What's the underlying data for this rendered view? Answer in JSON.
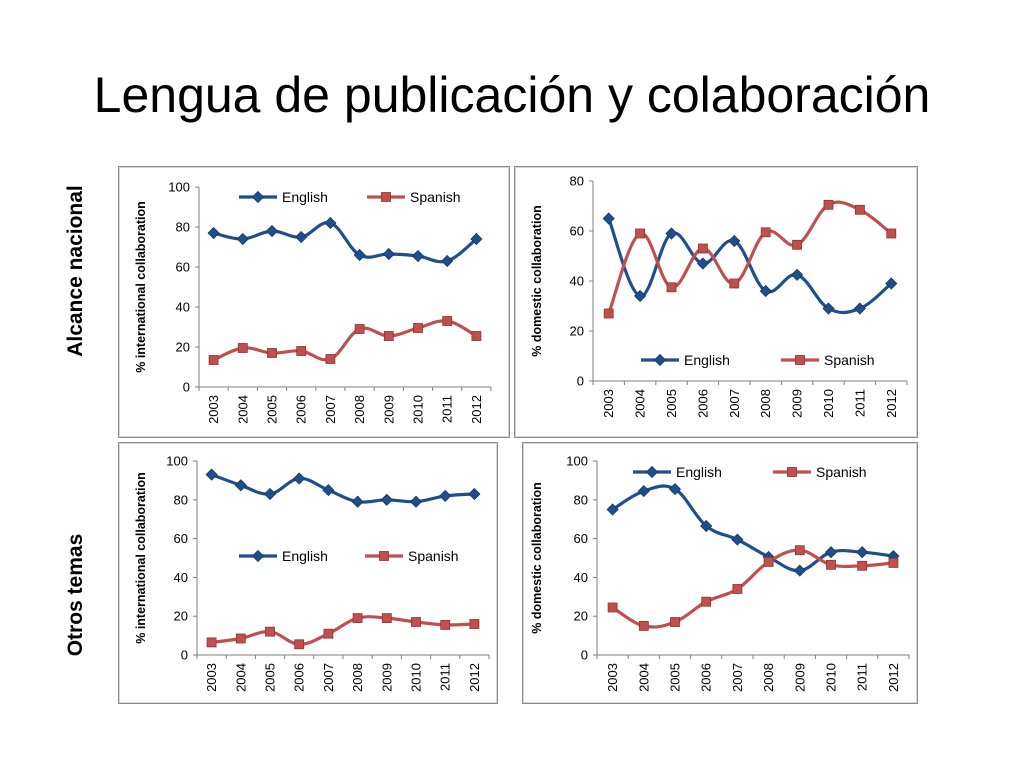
{
  "title": "Lengua de publicación y colaboración",
  "row_labels": [
    "Alcance nacional",
    "Otros  temas"
  ],
  "colors": {
    "English": "#1f4e8c",
    "Spanish": "#c0504d",
    "frame": "#8c8c8c",
    "axis": "#7f7f7f"
  },
  "chart_data": [
    {
      "type": "line",
      "categories": [
        "2003",
        "2004",
        "2005",
        "2006",
        "2007",
        "2008",
        "2009",
        "2010",
        "2011",
        "2012"
      ],
      "ylabel": "% international collaboration",
      "ylim": [
        0,
        100
      ],
      "yticks": [
        "0",
        "20",
        "40",
        "60",
        "80",
        "100"
      ],
      "legend": "top",
      "series": [
        {
          "name": "English",
          "marker": "diamond",
          "values": [
            77,
            74,
            78,
            75,
            82,
            66,
            66.5,
            65.5,
            63,
            74
          ]
        },
        {
          "name": "Spanish",
          "marker": "square",
          "values": [
            13.5,
            19.5,
            17,
            18,
            14,
            29,
            25.5,
            29.5,
            33,
            25.5
          ]
        }
      ]
    },
    {
      "type": "line",
      "categories": [
        "2003",
        "2004",
        "2005",
        "2006",
        "2007",
        "2008",
        "2009",
        "2010",
        "2011",
        "2012"
      ],
      "ylabel": "% domestic collaboration",
      "ylim": [
        0,
        80
      ],
      "yticks": [
        "0",
        "20",
        "40",
        "60",
        "80"
      ],
      "legend": "bottom",
      "series": [
        {
          "name": "English",
          "marker": "diamond",
          "values": [
            65,
            34,
            59,
            47,
            56,
            36,
            42.5,
            29,
            29,
            39
          ]
        },
        {
          "name": "Spanish",
          "marker": "square",
          "values": [
            27,
            59,
            37.5,
            53,
            39,
            59.5,
            54.5,
            70.5,
            68.5,
            59
          ]
        }
      ]
    },
    {
      "type": "line",
      "categories": [
        "2003",
        "2004",
        "2005",
        "2006",
        "2007",
        "2008",
        "2009",
        "2010",
        "2011",
        "2012"
      ],
      "ylabel": "% international collaboration",
      "ylim": [
        0,
        100
      ],
      "yticks": [
        "0",
        "20",
        "40",
        "60",
        "80",
        "100"
      ],
      "legend": "middle",
      "series": [
        {
          "name": "English",
          "marker": "diamond",
          "values": [
            93,
            87.5,
            83,
            91,
            85,
            79,
            80,
            79,
            82,
            83
          ]
        },
        {
          "name": "Spanish",
          "marker": "square",
          "values": [
            6.5,
            8.5,
            12,
            5.5,
            11,
            19,
            19,
            17,
            15.5,
            16
          ]
        }
      ]
    },
    {
      "type": "line",
      "categories": [
        "2003",
        "2004",
        "2005",
        "2006",
        "2007",
        "2008",
        "2009",
        "2010",
        "2011",
        "2012"
      ],
      "ylabel": "% domestic collaboration",
      "ylim": [
        0,
        100
      ],
      "yticks": [
        "0",
        "20",
        "40",
        "60",
        "80",
        "100"
      ],
      "legend": "top",
      "series": [
        {
          "name": "English",
          "marker": "diamond",
          "values": [
            75,
            84.5,
            85.5,
            66.5,
            59.5,
            50.5,
            43.5,
            53,
            53,
            51
          ]
        },
        {
          "name": "Spanish",
          "marker": "square",
          "values": [
            24.5,
            15,
            17,
            27.5,
            34,
            48,
            54,
            46.5,
            46,
            47.5
          ]
        }
      ]
    }
  ]
}
